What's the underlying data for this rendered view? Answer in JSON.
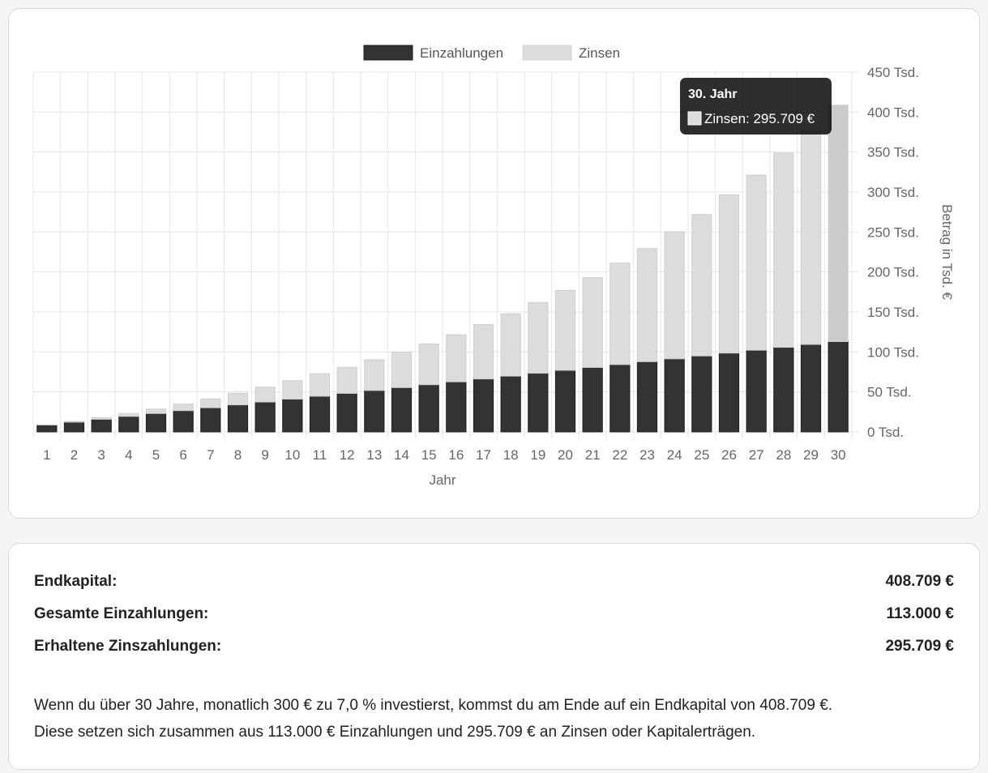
{
  "chart_data": {
    "type": "bar",
    "stacked": true,
    "categories": [
      "1",
      "2",
      "3",
      "4",
      "5",
      "6",
      "7",
      "8",
      "9",
      "10",
      "11",
      "12",
      "13",
      "14",
      "15",
      "16",
      "17",
      "18",
      "19",
      "20",
      "21",
      "22",
      "23",
      "24",
      "25",
      "26",
      "27",
      "28",
      "29",
      "30"
    ],
    "series": [
      {
        "name": "Einzahlungen",
        "color": "#333333",
        "values": [
          8600,
          12200,
          15800,
          19400,
          23000,
          26600,
          30200,
          33800,
          37400,
          41000,
          44600,
          48200,
          51800,
          55400,
          59000,
          62600,
          66200,
          69800,
          73400,
          77000,
          80600,
          84200,
          87800,
          91400,
          95000,
          98600,
          102200,
          105800,
          109400,
          113000
        ]
      },
      {
        "name": "Zinsen",
        "color": "#dcdcdc",
        "values": [
          300,
          900,
          2100,
          3600,
          5600,
          8100,
          11100,
          14600,
          18600,
          23100,
          28100,
          32600,
          38400,
          44500,
          51100,
          58900,
          68000,
          77700,
          88500,
          100000,
          112400,
          127000,
          141500,
          159000,
          177000,
          198000,
          219000,
          243000,
          268000,
          295709
        ]
      }
    ],
    "xlabel": "Jahr",
    "ylabel": "Betrag in Tsd. €",
    "ylim": [
      0,
      450000
    ],
    "yticks": [
      "0 Tsd.",
      "50 Tsd.",
      "100 Tsd.",
      "150 Tsd.",
      "200 Tsd.",
      "250 Tsd.",
      "300 Tsd.",
      "350 Tsd.",
      "400 Tsd.",
      "450 Tsd."
    ],
    "y_axis_side": "right",
    "grid": true,
    "legend": "top",
    "tooltip": {
      "title": "30. Jahr",
      "label": "Zinsen: 295.709 €",
      "category_index": 29,
      "series_index": 1
    }
  },
  "summary": {
    "rows": [
      {
        "label": "Endkapital:",
        "value": "408.709 €"
      },
      {
        "label": "Gesamte Einzahlungen:",
        "value": "113.000 €"
      },
      {
        "label": "Erhaltene Zinszahlungen:",
        "value": "295.709 €"
      }
    ],
    "description_line1": "Wenn du über 30 Jahre, monatlich 300 € zu 7,0 % investierst, kommst du am Ende auf ein Endkapital von 408.709 €.",
    "description_line2": "Diese setzen sich zusammen aus 113.000 € Einzahlungen und 295.709 € an Zinsen oder Kapitalerträgen."
  }
}
